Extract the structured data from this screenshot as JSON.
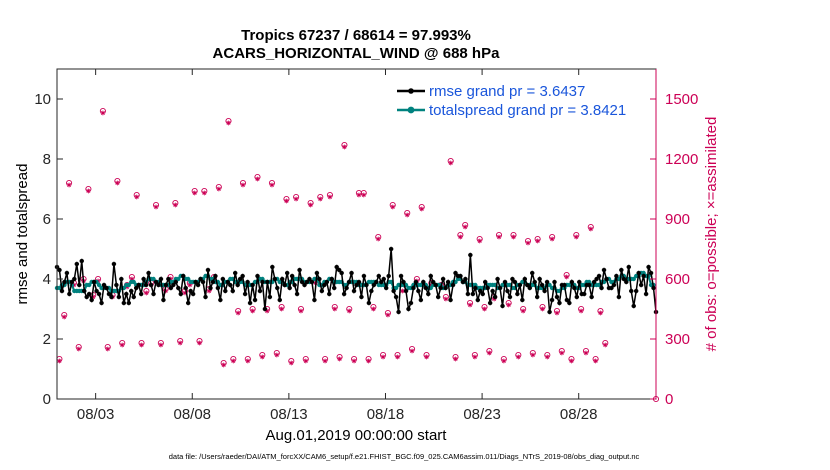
{
  "chart_data": {
    "type": "line",
    "title": "Tropics 67237 / 68614 = 97.993%",
    "subtitle": "ACARS_HORIZONTAL_WIND @ 688 hPa",
    "xlabel": "Aug.01,2019 00:00:00 start",
    "ylabel": "rmse and totalspread",
    "y2label": "# of obs: o=possible; ×=assimilated",
    "footer": "data file: /Users/raeder/DAI/ATM_forcXX/CAM6_setup/f.e21.FHIST_BGC.f09_025.CAM6assim.011/Diags_NTrS_2019-08/obs_diag_output.nc",
    "x_ticks": [
      {
        "day": 3,
        "label": "08/03"
      },
      {
        "day": 8,
        "label": "08/08"
      },
      {
        "day": 13,
        "label": "08/13"
      },
      {
        "day": 18,
        "label": "08/18"
      },
      {
        "day": 23,
        "label": "08/23"
      },
      {
        "day": 28,
        "label": "08/28"
      }
    ],
    "xlim": [
      1,
      32
    ],
    "ylim": [
      0,
      11
    ],
    "y_ticks": [
      "0",
      "2",
      "4",
      "6",
      "8",
      "10"
    ],
    "y2lim": [
      0,
      1650
    ],
    "y2_ticks": [
      "0",
      "300",
      "600",
      "900",
      "1200",
      "1500"
    ],
    "legend_position": "top-right",
    "colors": {
      "rmse": "#000000",
      "spread": "#00827f",
      "obs": "#cc0055",
      "legend_text": "#1a56db"
    },
    "series": [
      {
        "name": "rmse",
        "legend": "rmse grand pr = 3.6437",
        "values": [
          4.4,
          4.3,
          3.6,
          3.9,
          4.2,
          3.5,
          3.9,
          4.0,
          4.5,
          3.8,
          4.6,
          3.6,
          3.4,
          3.5,
          3.3,
          3.9,
          3.6,
          3.5,
          3.2,
          3.8,
          3.7,
          3.5,
          3.4,
          4.5,
          3.8,
          3.4,
          4.0,
          3.2,
          3.5,
          3.2,
          3.6,
          3.4,
          3.7,
          3.8,
          3.5,
          4.0,
          3.8,
          4.2,
          3.8,
          3.5,
          3.9,
          3.8,
          4.0,
          3.3,
          3.8,
          4.0,
          3.7,
          3.8,
          3.9,
          3.7,
          3.5,
          4.1,
          3.7,
          3.2,
          3.6,
          3.5,
          3.9,
          3.8,
          4.0,
          3.9,
          3.4,
          4.3,
          3.7,
          3.9,
          4.1,
          3.7,
          3.3,
          4.0,
          3.6,
          3.9,
          3.8,
          3.6,
          4.2,
          3.8,
          4.0,
          4.1,
          3.5,
          3.9,
          3.2,
          3.8,
          3.3,
          4.1,
          3.6,
          3.9,
          3.0,
          3.9,
          3.4,
          4.4,
          4.0,
          3.7,
          3.3,
          4.0,
          3.8,
          4.2,
          3.7,
          4.1,
          3.8,
          3.5,
          4.3,
          3.9,
          3.8,
          3.9,
          4.0,
          3.9,
          3.3,
          4.2,
          4.0,
          3.6,
          3.8,
          3.9,
          3.5,
          4.0,
          3.7,
          4.4,
          4.3,
          4.2,
          3.5,
          3.7,
          3.9,
          4.2,
          3.6,
          3.8,
          3.9,
          3.4,
          4.1,
          3.8,
          3.2,
          3.6,
          3.8,
          3.9,
          4.1,
          3.9,
          4.0,
          3.7,
          4.1,
          5.0,
          3.6,
          3.4,
          2.9,
          4.1,
          3.9,
          3.6,
          3.0,
          3.2,
          3.7,
          3.9,
          3.6,
          3.3,
          3.9,
          3.7,
          3.5,
          4.1,
          3.9,
          3.8,
          3.4,
          3.7,
          4.0,
          3.7,
          3.9,
          3.3,
          3.8,
          4.2,
          4.1,
          4.1,
          3.9,
          4.0,
          3.5,
          4.8,
          3.5,
          3.7,
          3.3,
          3.6,
          3.5,
          3.9,
          3.7,
          3.2,
          3.6,
          3.4,
          4.0,
          3.7,
          3.1,
          3.9,
          3.6,
          3.4,
          4.0,
          3.9,
          3.5,
          3.8,
          3.3,
          4.0,
          3.8,
          3.7,
          4.2,
          3.9,
          3.4,
          4.0,
          3.8,
          3.6,
          3.9,
          2.9,
          3.3,
          3.9,
          3.4,
          3.2,
          3.8,
          3.8,
          3.3,
          3.2,
          3.9,
          3.7,
          3.4,
          3.9,
          3.5,
          3.5,
          3.8,
          3.8,
          3.4,
          3.9,
          4.0,
          4.1,
          3.7,
          4.3,
          4.0,
          3.7,
          3.7,
          3.8,
          4.1,
          3.4,
          4.3,
          4.0,
          3.9,
          4.4,
          3.6,
          3.1,
          3.6,
          4.2,
          3.8,
          4.1,
          3.5,
          4.4,
          4.2,
          3.7,
          2.9
        ]
      },
      {
        "name": "totalspread",
        "legend": "totalspread grand pr = 3.8421",
        "values": [
          3.7,
          3.7,
          3.8,
          3.8,
          3.9,
          3.9,
          3.8,
          3.6,
          3.6,
          3.6,
          3.6,
          3.6,
          3.8,
          3.8,
          3.9,
          3.9,
          3.9,
          3.8,
          3.7,
          3.7,
          3.7,
          3.7,
          3.6,
          3.6,
          3.6,
          3.6,
          3.7,
          3.7,
          3.8,
          3.8,
          3.9,
          3.9,
          3.8,
          3.8,
          3.8,
          3.8,
          3.9,
          4.0,
          4.0,
          4.0,
          3.9,
          3.9,
          3.8,
          3.8,
          3.8,
          3.8,
          3.9,
          3.9,
          4.0,
          4.0,
          4.1,
          4.1,
          4.0,
          4.0,
          3.9,
          3.9,
          3.9,
          3.9,
          4.0,
          4.0,
          4.1,
          4.1,
          4.0,
          4.0,
          3.9,
          3.9,
          3.8,
          3.8,
          3.9,
          3.9,
          4.0,
          4.0,
          3.9,
          3.9,
          3.9,
          3.9,
          3.8,
          3.8,
          3.8,
          3.8,
          3.9,
          3.9,
          4.0,
          4.0,
          3.9,
          3.9,
          3.9,
          3.9,
          4.0,
          4.0,
          3.9,
          3.9,
          3.8,
          3.8,
          3.9,
          3.9,
          4.0,
          4.0,
          4.0,
          4.0,
          3.9,
          3.9,
          3.9,
          3.9,
          4.0,
          4.0,
          3.8,
          3.8,
          3.9,
          3.9,
          4.0,
          4.0,
          3.9,
          3.9,
          3.9,
          3.9,
          3.8,
          3.8,
          3.9,
          3.9,
          3.9,
          3.9,
          3.8,
          3.8,
          3.8,
          3.8,
          3.9,
          3.9,
          3.9,
          3.9,
          3.8,
          3.8,
          3.8,
          3.8,
          3.9,
          3.9,
          3.7,
          3.7,
          3.8,
          3.8,
          3.8,
          3.8,
          3.7,
          3.7,
          3.8,
          3.8,
          3.8,
          3.8,
          3.8,
          3.8,
          3.7,
          3.7,
          3.8,
          3.8,
          3.8,
          3.8,
          3.7,
          3.7,
          3.8,
          3.8,
          3.9,
          3.9,
          4.0,
          4.0,
          3.9,
          3.9,
          3.8,
          3.8,
          3.8,
          3.8,
          3.7,
          3.7,
          3.7,
          3.7,
          3.8,
          3.8,
          3.8,
          3.8,
          3.7,
          3.7,
          3.8,
          3.8,
          3.8,
          3.8,
          3.7,
          3.7,
          3.8,
          3.8,
          3.9,
          3.9,
          3.8,
          3.8,
          3.8,
          3.8,
          3.7,
          3.7,
          3.7,
          3.7,
          3.8,
          3.8,
          3.7,
          3.7,
          3.6,
          3.6,
          3.7,
          3.7,
          3.8,
          3.8,
          3.8,
          3.8,
          3.7,
          3.7,
          3.8,
          3.8,
          3.9,
          3.9,
          3.8,
          3.8,
          3.8,
          3.8,
          3.9,
          3.9,
          4.0,
          4.0,
          3.9,
          3.9,
          4.0,
          4.0,
          4.1,
          4.1,
          4.0,
          4.0,
          4.0,
          4.0,
          4.1,
          4.1,
          4.2,
          4.2,
          4.1,
          4.1,
          3.8,
          3.8
        ]
      }
    ],
    "obs_possible": [
      [
        1.125,
        200
      ],
      [
        1.375,
        420
      ],
      [
        1.625,
        1080
      ],
      [
        1.875,
        580
      ],
      [
        2.125,
        260
      ],
      [
        2.375,
        600
      ],
      [
        2.625,
        1050
      ],
      [
        2.875,
        520
      ],
      [
        3.125,
        600
      ],
      [
        3.375,
        1440
      ],
      [
        3.625,
        260
      ],
      [
        3.875,
        520
      ],
      [
        4.125,
        1090
      ],
      [
        4.375,
        280
      ],
      [
        4.625,
        570
      ],
      [
        4.875,
        610
      ],
      [
        5.125,
        1020
      ],
      [
        5.375,
        280
      ],
      [
        5.625,
        540
      ],
      [
        5.875,
        580
      ],
      [
        6.125,
        970
      ],
      [
        6.375,
        280
      ],
      [
        6.625,
        550
      ],
      [
        6.875,
        610
      ],
      [
        7.125,
        980
      ],
      [
        7.375,
        290
      ],
      [
        7.625,
        540
      ],
      [
        7.875,
        580
      ],
      [
        8.125,
        1040
      ],
      [
        8.375,
        290
      ],
      [
        8.625,
        1040
      ],
      [
        8.875,
        550
      ],
      [
        9.125,
        610
      ],
      [
        9.375,
        1060
      ],
      [
        9.625,
        180
      ],
      [
        9.875,
        1390
      ],
      [
        10.125,
        200
      ],
      [
        10.375,
        440
      ],
      [
        10.625,
        1080
      ],
      [
        10.875,
        200
      ],
      [
        11.125,
        450
      ],
      [
        11.375,
        1110
      ],
      [
        11.625,
        220
      ],
      [
        11.875,
        450
      ],
      [
        12.125,
        1080
      ],
      [
        12.375,
        230
      ],
      [
        12.625,
        460
      ],
      [
        12.875,
        1000
      ],
      [
        13.125,
        190
      ],
      [
        13.375,
        1010
      ],
      [
        13.625,
        450
      ],
      [
        13.875,
        200
      ],
      [
        14.125,
        980
      ],
      [
        14.375,
        590
      ],
      [
        14.625,
        1010
      ],
      [
        14.875,
        200
      ],
      [
        15.125,
        1020
      ],
      [
        15.375,
        460
      ],
      [
        15.625,
        210
      ],
      [
        15.875,
        1270
      ],
      [
        16.125,
        450
      ],
      [
        16.375,
        200
      ],
      [
        16.625,
        1030
      ],
      [
        16.875,
        1030
      ],
      [
        17.125,
        200
      ],
      [
        17.375,
        460
      ],
      [
        17.625,
        810
      ],
      [
        17.875,
        220
      ],
      [
        18.125,
        430
      ],
      [
        18.375,
        970
      ],
      [
        18.625,
        220
      ],
      [
        18.875,
        550
      ],
      [
        19.125,
        930
      ],
      [
        19.375,
        250
      ],
      [
        19.625,
        600
      ],
      [
        19.875,
        960
      ],
      [
        20.125,
        220
      ],
      [
        20.375,
        580
      ],
      [
        20.875,
        570
      ],
      [
        21.125,
        510
      ],
      [
        21.375,
        1190
      ],
      [
        21.625,
        210
      ],
      [
        21.875,
        820
      ],
      [
        22.125,
        870
      ],
      [
        22.375,
        480
      ],
      [
        22.625,
        220
      ],
      [
        22.875,
        800
      ],
      [
        23.125,
        460
      ],
      [
        23.375,
        240
      ],
      [
        23.625,
        510
      ],
      [
        23.875,
        820
      ],
      [
        24.125,
        200
      ],
      [
        24.375,
        480
      ],
      [
        24.625,
        820
      ],
      [
        24.875,
        220
      ],
      [
        25.125,
        450
      ],
      [
        25.375,
        790
      ],
      [
        25.625,
        230
      ],
      [
        25.875,
        800
      ],
      [
        26.125,
        460
      ],
      [
        26.375,
        220
      ],
      [
        26.625,
        810
      ],
      [
        26.875,
        440
      ],
      [
        27.125,
        240
      ],
      [
        27.375,
        620
      ],
      [
        27.625,
        200
      ],
      [
        27.875,
        820
      ],
      [
        28.125,
        450
      ],
      [
        28.375,
        240
      ],
      [
        28.625,
        860
      ],
      [
        28.875,
        200
      ],
      [
        29.125,
        440
      ],
      [
        29.375,
        280
      ]
    ],
    "obs_assimilated": [
      [
        1.125,
        190
      ],
      [
        1.375,
        410
      ],
      [
        1.625,
        1070
      ],
      [
        1.875,
        570
      ],
      [
        2.125,
        250
      ],
      [
        2.375,
        590
      ],
      [
        2.625,
        1040
      ],
      [
        2.875,
        510
      ],
      [
        3.125,
        590
      ],
      [
        3.375,
        1430
      ],
      [
        3.625,
        250
      ],
      [
        3.875,
        510
      ],
      [
        4.125,
        1080
      ],
      [
        4.375,
        270
      ],
      [
        4.625,
        560
      ],
      [
        4.875,
        600
      ],
      [
        5.125,
        1010
      ],
      [
        5.375,
        270
      ],
      [
        5.625,
        530
      ],
      [
        5.875,
        570
      ],
      [
        6.125,
        960
      ],
      [
        6.375,
        270
      ],
      [
        6.625,
        540
      ],
      [
        6.875,
        600
      ],
      [
        7.125,
        970
      ],
      [
        7.375,
        280
      ],
      [
        7.625,
        530
      ],
      [
        7.875,
        570
      ],
      [
        8.125,
        1030
      ],
      [
        8.375,
        280
      ],
      [
        8.625,
        1030
      ],
      [
        8.875,
        540
      ],
      [
        9.125,
        600
      ],
      [
        9.375,
        1050
      ],
      [
        9.625,
        170
      ],
      [
        9.875,
        1380
      ],
      [
        10.125,
        190
      ],
      [
        10.375,
        430
      ],
      [
        10.625,
        1070
      ],
      [
        10.875,
        190
      ],
      [
        11.125,
        440
      ],
      [
        11.375,
        1100
      ],
      [
        11.625,
        210
      ],
      [
        11.875,
        440
      ],
      [
        12.125,
        1070
      ],
      [
        12.375,
        220
      ],
      [
        12.625,
        450
      ],
      [
        12.875,
        990
      ],
      [
        13.125,
        180
      ],
      [
        13.375,
        1000
      ],
      [
        13.625,
        440
      ],
      [
        13.875,
        190
      ],
      [
        14.125,
        970
      ],
      [
        14.375,
        580
      ],
      [
        14.625,
        1000
      ],
      [
        14.875,
        190
      ],
      [
        15.125,
        1010
      ],
      [
        15.375,
        450
      ],
      [
        15.625,
        200
      ],
      [
        15.875,
        1260
      ],
      [
        16.125,
        440
      ],
      [
        16.375,
        190
      ],
      [
        16.625,
        1020
      ],
      [
        16.875,
        1020
      ],
      [
        17.125,
        190
      ],
      [
        17.375,
        450
      ],
      [
        17.625,
        800
      ],
      [
        17.875,
        210
      ],
      [
        18.125,
        420
      ],
      [
        18.375,
        960
      ],
      [
        18.625,
        210
      ],
      [
        18.875,
        540
      ],
      [
        19.125,
        920
      ],
      [
        19.375,
        240
      ],
      [
        19.625,
        590
      ],
      [
        19.875,
        950
      ],
      [
        20.125,
        210
      ],
      [
        20.375,
        570
      ],
      [
        20.875,
        560
      ],
      [
        21.125,
        500
      ],
      [
        21.375,
        1180
      ],
      [
        21.625,
        200
      ],
      [
        21.875,
        810
      ],
      [
        22.125,
        860
      ],
      [
        22.375,
        470
      ],
      [
        22.625,
        210
      ],
      [
        22.875,
        790
      ],
      [
        23.125,
        450
      ],
      [
        23.375,
        230
      ],
      [
        23.625,
        500
      ],
      [
        23.875,
        810
      ],
      [
        24.125,
        190
      ],
      [
        24.375,
        470
      ],
      [
        24.625,
        810
      ],
      [
        24.875,
        210
      ],
      [
        25.125,
        440
      ],
      [
        25.375,
        780
      ],
      [
        25.625,
        220
      ],
      [
        25.875,
        790
      ],
      [
        26.125,
        450
      ],
      [
        26.375,
        210
      ],
      [
        26.625,
        800
      ],
      [
        26.875,
        430
      ],
      [
        27.125,
        230
      ],
      [
        27.375,
        610
      ],
      [
        27.625,
        190
      ],
      [
        27.875,
        810
      ],
      [
        28.125,
        440
      ],
      [
        28.375,
        230
      ],
      [
        28.625,
        850
      ],
      [
        28.875,
        190
      ],
      [
        29.125,
        430
      ],
      [
        29.375,
        270
      ]
    ]
  }
}
